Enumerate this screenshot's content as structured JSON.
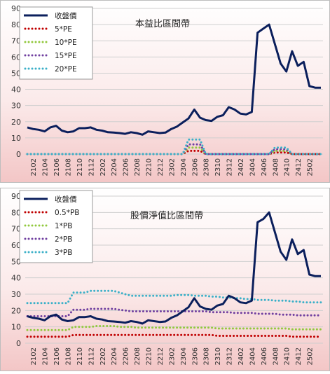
{
  "colors": {
    "background_top": "#ffffff",
    "background_bottom": "#f3c6c6",
    "close_line": "#0b1f5c",
    "band_1": "#c00000",
    "band_2": "#92c83e",
    "band_3": "#7040a0",
    "band_4": "#3cb0c8",
    "grid": "#cfcfcf"
  },
  "chart_data": [
    {
      "type": "line",
      "title": "本益比區間帶",
      "ylim": [
        0,
        90
      ],
      "yticks": [
        0,
        10,
        20,
        30,
        40,
        50,
        60,
        70,
        80,
        90
      ],
      "grid": true,
      "legend_position": "top-left",
      "x_tick_labels": [
        "2102",
        "2104",
        "2106",
        "2108",
        "2110",
        "2112",
        "2202",
        "2204",
        "2206",
        "2208",
        "2210",
        "2212",
        "2302",
        "2304",
        "2306",
        "2308",
        "2310",
        "2312",
        "2402",
        "2404",
        "2406",
        "2408",
        "2410",
        "2412",
        "2502"
      ],
      "series": [
        {
          "name": "收盤價",
          "style": "solid",
          "values": [
            16.5,
            15.5,
            15,
            14,
            16.5,
            17.5,
            14.5,
            13.5,
            14,
            16,
            16,
            16.5,
            15,
            14.5,
            13.5,
            13.3,
            13,
            12.5,
            13.5,
            13,
            12,
            14,
            13.5,
            13,
            13.3,
            15.5,
            17,
            19.5,
            22,
            27.5,
            22.5,
            21,
            20.5,
            23,
            24,
            29,
            27.5,
            25,
            24.5,
            26,
            75,
            77.5,
            80,
            68,
            56,
            51,
            63.5,
            54.5,
            57,
            42,
            41,
            41
          ]
        },
        {
          "name": "5*PE",
          "style": "dotted",
          "values": [
            0,
            0,
            0,
            0,
            0,
            0,
            0,
            0,
            0,
            0,
            0,
            0,
            0,
            0,
            0,
            0,
            0,
            0,
            0,
            0,
            0,
            0,
            0,
            0,
            0,
            0,
            0,
            0,
            2,
            2,
            2,
            0,
            0,
            0,
            0,
            0,
            0,
            0,
            0,
            0,
            0,
            0,
            0,
            1,
            1,
            1,
            0,
            0,
            0,
            0,
            0,
            0
          ]
        },
        {
          "name": "10*PE",
          "style": "dotted",
          "values": [
            0,
            0,
            0,
            0,
            0,
            0,
            0,
            0,
            0,
            0,
            0,
            0,
            0,
            0,
            0,
            0,
            0,
            0,
            0,
            0,
            0,
            0,
            0,
            0,
            0,
            0,
            0,
            0,
            4,
            4,
            4,
            0,
            0,
            0,
            0,
            0,
            0,
            0,
            0,
            0,
            0,
            0,
            0,
            2,
            2,
            2,
            0,
            0,
            0,
            0,
            0,
            0
          ]
        },
        {
          "name": "15*PE",
          "style": "dotted",
          "values": [
            0,
            0,
            0,
            0,
            0,
            0,
            0,
            0,
            0,
            0,
            0,
            0,
            0,
            0,
            0,
            0,
            0,
            0,
            0,
            0,
            0,
            0,
            0,
            0,
            0,
            0,
            0,
            0,
            6,
            6,
            6,
            0,
            0,
            0,
            0,
            0,
            0,
            0,
            0,
            0,
            0,
            0,
            0,
            3,
            3,
            3,
            0,
            0,
            0,
            0,
            0,
            0
          ]
        },
        {
          "name": "20*PE",
          "style": "dotted",
          "values": [
            0,
            0,
            0,
            0,
            0,
            0,
            0,
            0,
            0,
            0,
            0,
            0,
            0,
            0,
            0,
            0,
            0,
            0,
            0,
            0,
            0,
            0,
            0,
            0,
            0,
            0,
            0,
            0,
            9,
            9,
            9,
            0,
            0,
            0,
            0,
            0,
            0,
            0,
            0,
            0,
            0,
            0,
            0,
            4,
            4,
            4,
            0,
            0,
            0,
            0,
            0,
            0
          ]
        }
      ]
    },
    {
      "type": "line",
      "title": "股價淨值比區間帶",
      "ylim": [
        0,
        90
      ],
      "yticks": [
        0,
        10,
        20,
        30,
        40,
        50,
        60,
        70,
        80,
        90
      ],
      "grid": true,
      "legend_position": "top-left",
      "x_tick_labels": [
        "2102",
        "2104",
        "2106",
        "2108",
        "2110",
        "2112",
        "2202",
        "2204",
        "2206",
        "2208",
        "2210",
        "2212",
        "2302",
        "2304",
        "2306",
        "2308",
        "2310",
        "2312",
        "2402",
        "2404",
        "2406",
        "2408",
        "2410",
        "2412",
        "2502"
      ],
      "series": [
        {
          "name": "收盤價",
          "style": "solid",
          "values": [
            16.5,
            15.5,
            15,
            14,
            16.5,
            17.5,
            14.5,
            13.5,
            14,
            16,
            16,
            16.5,
            15,
            14.5,
            13.5,
            13.3,
            13,
            12.5,
            13.5,
            13,
            12,
            14,
            13.5,
            13,
            13.3,
            15.5,
            17,
            19.5,
            22,
            27.5,
            22.5,
            21,
            20.5,
            23,
            24,
            29,
            27.5,
            25,
            24.5,
            26,
            74,
            76,
            80,
            68,
            56,
            51,
            63.5,
            54.5,
            57,
            42,
            41,
            41
          ]
        },
        {
          "name": "0.5*PB",
          "style": "dotted",
          "values": [
            4,
            4,
            4,
            4,
            4,
            4,
            4,
            4,
            5,
            5,
            5,
            5,
            5,
            5,
            5,
            5,
            5,
            5,
            5,
            5,
            5,
            5,
            5,
            5,
            5,
            5,
            5,
            5,
            5,
            5,
            5,
            5,
            5,
            4.5,
            4.5,
            4.5,
            4.5,
            4.5,
            4.5,
            4.5,
            4.5,
            4.5,
            4.5,
            4.5,
            4.5,
            4.5,
            4,
            4,
            4,
            4,
            4,
            4
          ]
        },
        {
          "name": "1*PB",
          "style": "dotted",
          "values": [
            8,
            8,
            8,
            8,
            8,
            8,
            8,
            8,
            10,
            10,
            10,
            10,
            10.5,
            10.5,
            10.5,
            10.5,
            10,
            10,
            10,
            9.5,
            9.5,
            9.5,
            9.5,
            9.5,
            9.5,
            9.5,
            9.5,
            9.5,
            9.5,
            9.5,
            9.5,
            9.5,
            9.5,
            9,
            9,
            9,
            9,
            9,
            9,
            9,
            9,
            9,
            9,
            9,
            9,
            9,
            8.5,
            8.5,
            8.5,
            8.5,
            8.5,
            8.5
          ]
        },
        {
          "name": "2*PB",
          "style": "dotted",
          "values": [
            16.5,
            16.5,
            16.5,
            16.5,
            16.5,
            16.5,
            16.5,
            16.5,
            20.5,
            20.5,
            20.5,
            21,
            21,
            21,
            21,
            21,
            20.5,
            20,
            19.5,
            19.5,
            19.5,
            19.5,
            19.5,
            19.5,
            19.5,
            19.5,
            19.5,
            19.5,
            19.5,
            19.5,
            19.5,
            19.5,
            19,
            19,
            19,
            19,
            18.5,
            18.5,
            18.5,
            18.5,
            18,
            18,
            18,
            18,
            17.5,
            17.5,
            17.5,
            17,
            17,
            17,
            17,
            17
          ]
        },
        {
          "name": "3*PB",
          "style": "dotted",
          "values": [
            24.5,
            24.5,
            24.5,
            24.5,
            24.5,
            24.5,
            24.5,
            24.5,
            31,
            31,
            31,
            32,
            32,
            32,
            32,
            32,
            31,
            30,
            29,
            29,
            29,
            29,
            29,
            29,
            29,
            29,
            29.5,
            29.5,
            29.5,
            29,
            29,
            29,
            28.5,
            28.5,
            28,
            28,
            27.5,
            27.5,
            27,
            27,
            26.5,
            26.5,
            26.5,
            26,
            26,
            26,
            25.5,
            25.5,
            25,
            25,
            25,
            25
          ]
        }
      ]
    }
  ]
}
